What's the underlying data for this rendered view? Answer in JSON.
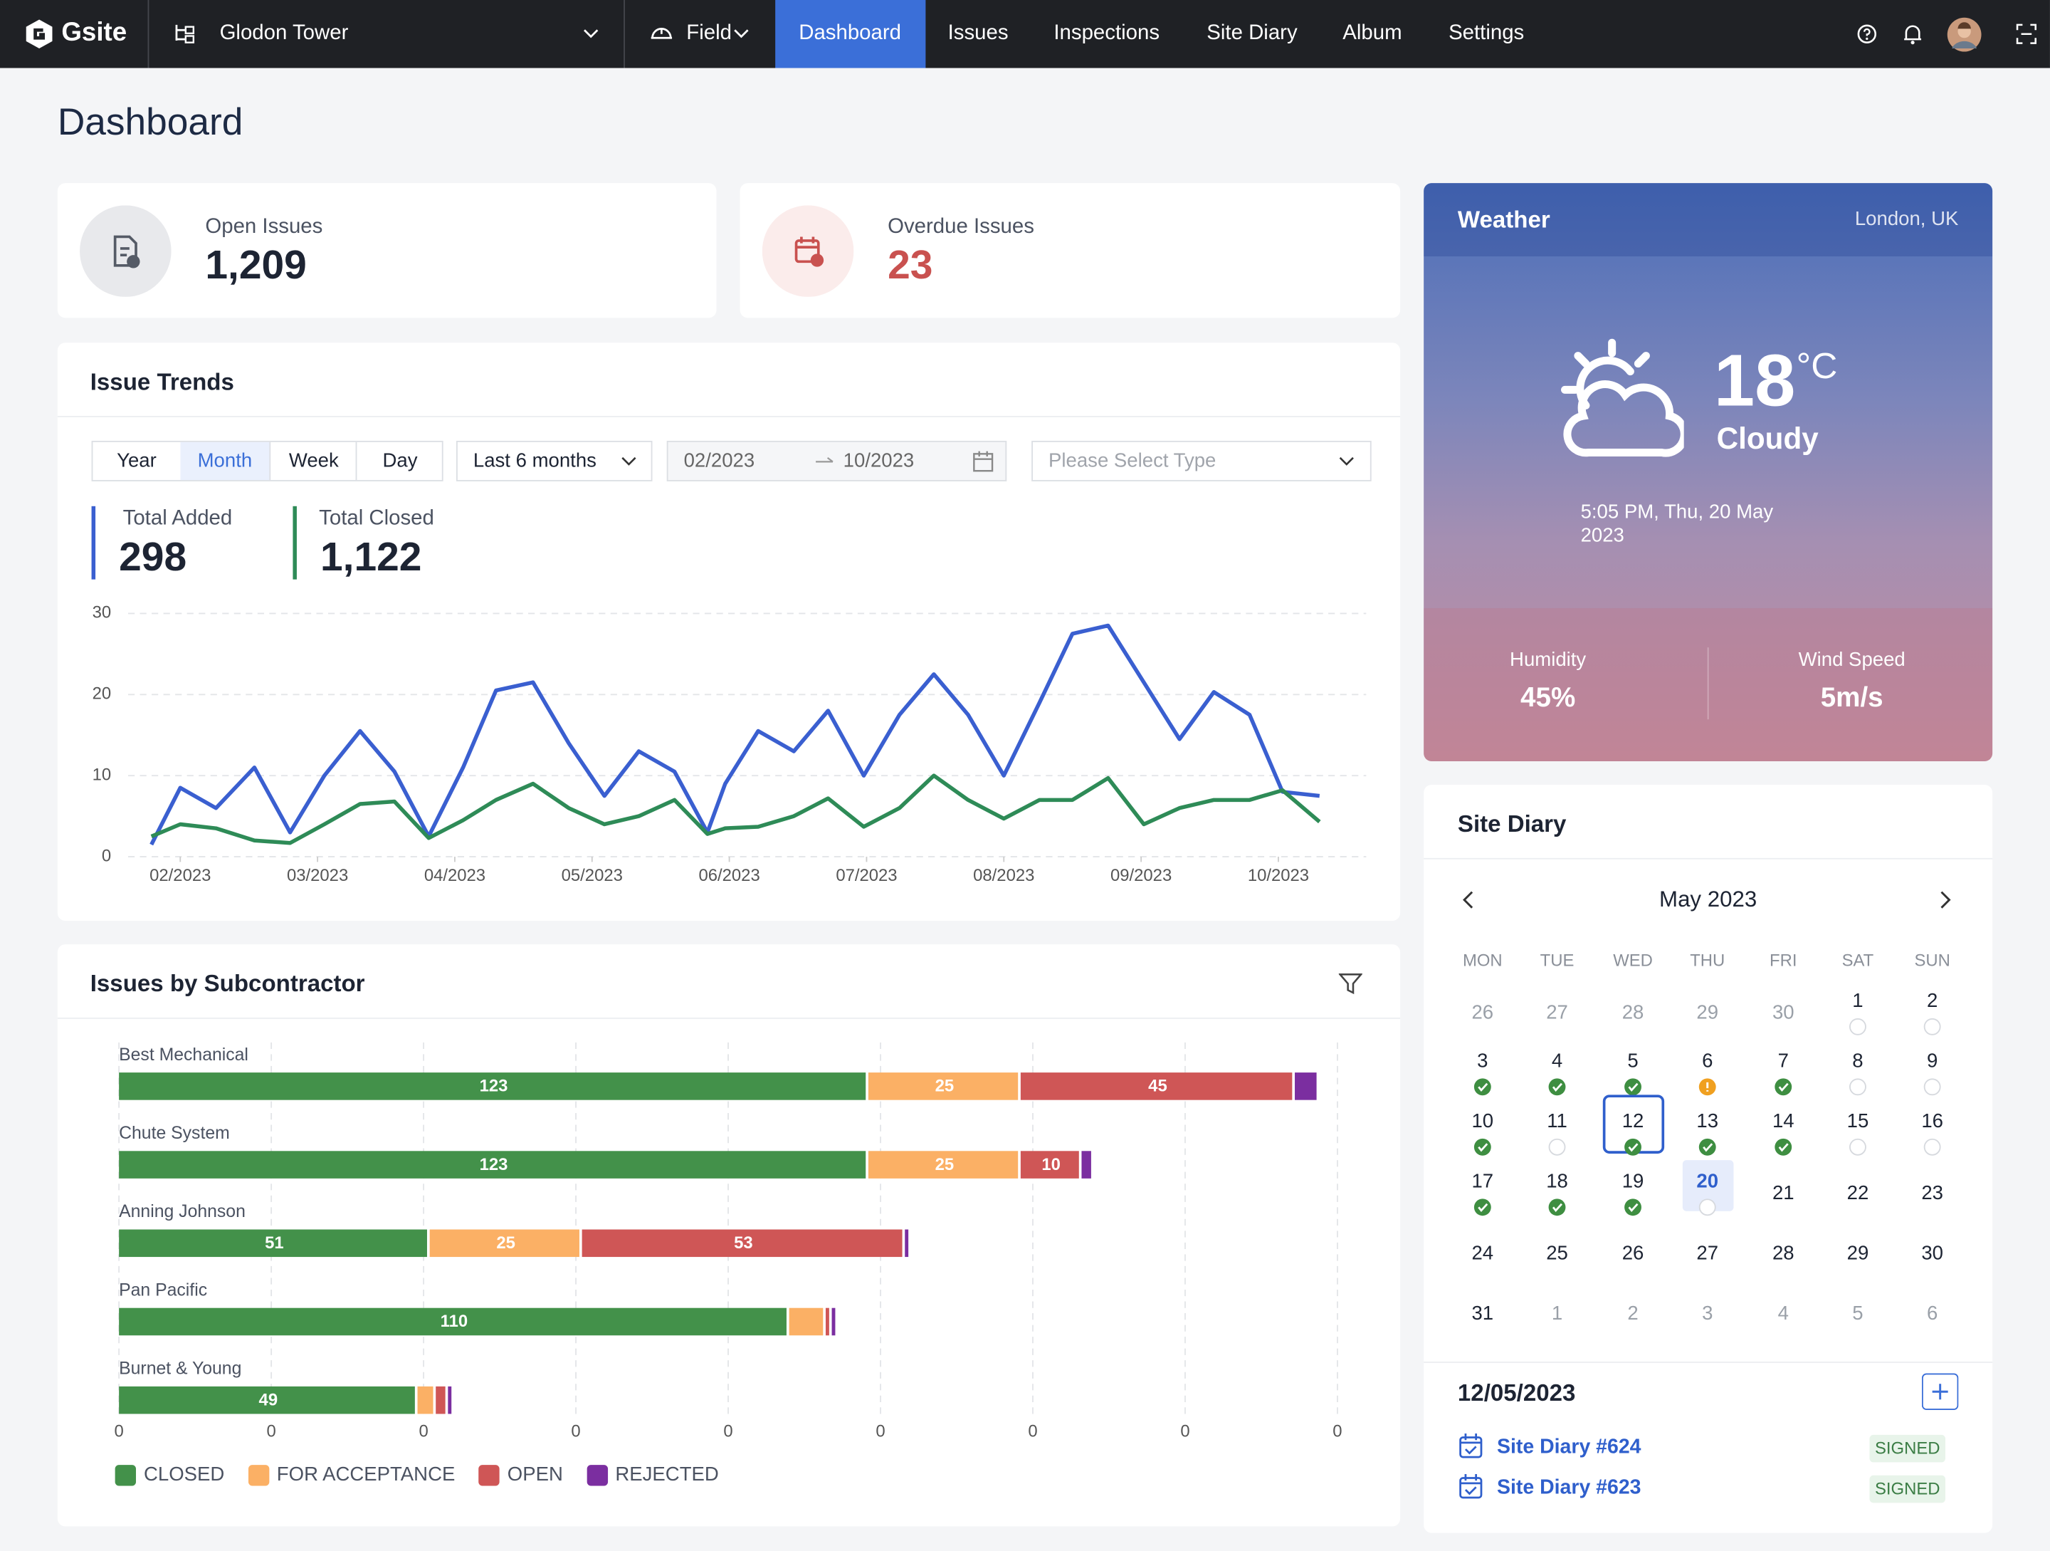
{
  "nav": {
    "brand": "Gsite",
    "project": "Glodon Tower",
    "module": "Field",
    "tabs": [
      "Dashboard",
      "Issues",
      "Inspections",
      "Site Diary",
      "Album",
      "Settings"
    ]
  },
  "header": {
    "title": "Dashboard"
  },
  "cards": [
    {
      "label": "Open Issues",
      "value": "1,209"
    },
    {
      "label": "Overdue Issues",
      "value": "23"
    }
  ],
  "issue_trends": {
    "title": "Issue Trends",
    "periods": [
      "Year",
      "Month",
      "Week",
      "Day"
    ],
    "range": "Last 6 months",
    "start": "02/2023",
    "end": "10/2023",
    "type_placeholder": "Please Select Type",
    "totals": [
      "298",
      "1,122"
    ]
  },
  "subcontractor": {
    "title": "Issues by Subcontractor"
  },
  "weather": {
    "title": "Weather",
    "location": "London, UK",
    "temperature": "18",
    "unit": "°C",
    "condition": "Cloudy",
    "datetime": "5:05 PM, Thu, 20 May 2023",
    "humidity_label": "Humidity",
    "humidity": "45%",
    "wind_label": "Wind Speed",
    "wind": "5m/s"
  },
  "site_diary": {
    "title": "Site Diary",
    "month": "May 2023",
    "weekdays": [
      "MON",
      "TUE",
      "WED",
      "THU",
      "FRI",
      "SAT",
      "SUN"
    ],
    "weeks": [
      [
        {
          "day": 26,
          "muted": true
        },
        {
          "day": 27,
          "muted": true
        },
        {
          "day": 28,
          "muted": true
        },
        {
          "day": 29,
          "muted": true
        },
        {
          "day": 30,
          "muted": true
        },
        {
          "day": 1,
          "dot": "empty"
        },
        {
          "day": 2,
          "dot": "empty"
        }
      ],
      [
        {
          "day": 3,
          "dot": "done"
        },
        {
          "day": 4,
          "dot": "done"
        },
        {
          "day": 5,
          "dot": "done"
        },
        {
          "day": 6,
          "dot": "warn"
        },
        {
          "day": 7,
          "dot": "done"
        },
        {
          "day": 8,
          "dot": "empty"
        },
        {
          "day": 9,
          "dot": "empty"
        }
      ],
      [
        {
          "day": 10,
          "dot": "done"
        },
        {
          "day": 11,
          "dot": "empty"
        },
        {
          "day": 12,
          "dot": "done",
          "selected": true
        },
        {
          "day": 13,
          "dot": "done"
        },
        {
          "day": 14,
          "dot": "done"
        },
        {
          "day": 15,
          "dot": "empty"
        },
        {
          "day": 16,
          "dot": "empty"
        }
      ],
      [
        {
          "day": 17,
          "dot": "done"
        },
        {
          "day": 18,
          "dot": "done"
        },
        {
          "day": 19,
          "dot": "done"
        },
        {
          "day": 20,
          "dot": "empty",
          "today": true
        },
        {
          "day": 21
        },
        {
          "day": 22
        },
        {
          "day": 23
        }
      ],
      [
        {
          "day": 24
        },
        {
          "day": 25
        },
        {
          "day": 26
        },
        {
          "day": 27
        },
        {
          "day": 28
        },
        {
          "day": 29
        },
        {
          "day": 30
        }
      ],
      [
        {
          "day": 31
        },
        {
          "day": 1,
          "muted": true
        },
        {
          "day": 2,
          "muted": true
        },
        {
          "day": 3,
          "muted": true
        },
        {
          "day": 4,
          "muted": true
        },
        {
          "day": 5,
          "muted": true
        },
        {
          "day": 6,
          "muted": true
        }
      ]
    ],
    "selected_date": "12/05/2023",
    "entries": [
      {
        "name": "Site Diary #624",
        "status": "SIGNED"
      },
      {
        "name": "Site Diary #623",
        "status": "SIGNED"
      }
    ]
  },
  "chart_data": [
    {
      "type": "line",
      "x": [
        1.79,
        2.0,
        2.26,
        2.54,
        2.8,
        3.05,
        3.31,
        3.56,
        3.81,
        4.06,
        4.3,
        4.57,
        4.83,
        5.09,
        5.34,
        5.6,
        5.84,
        5.97,
        6.21,
        6.47,
        6.72,
        6.98,
        7.24,
        7.49,
        7.74,
        8.0,
        8.26,
        8.5,
        8.76,
        9.02,
        9.28,
        9.53,
        9.79,
        10.03,
        10.3
      ],
      "series": [
        {
          "name": "Total Added",
          "color": "#3a5fd0",
          "values": [
            1.5,
            8.5,
            6,
            11,
            3,
            10,
            15.5,
            10.5,
            2.5,
            11,
            20.5,
            21.5,
            14,
            7.5,
            13,
            10.5,
            3,
            9,
            15.5,
            13,
            18,
            10,
            17.5,
            22.5,
            17.5,
            10,
            19,
            27.5,
            28.5,
            21.5,
            14.5,
            20.3,
            17.5,
            8,
            7.5
          ]
        },
        {
          "name": "Total Closed",
          "color": "#2e8b57",
          "values": [
            2.5,
            4,
            3.5,
            2,
            1.7,
            4,
            6.5,
            6.8,
            2.3,
            4.5,
            7,
            9,
            6,
            4,
            5,
            7,
            2.8,
            3.5,
            3.7,
            5,
            7.2,
            3.7,
            6,
            10,
            7,
            4.7,
            7,
            7,
            9.7,
            4,
            6,
            7,
            7,
            8.2,
            4.3
          ]
        }
      ],
      "xlim": [
        1.62,
        10.64
      ],
      "xticks": [
        {
          "value": 2,
          "label": "02/2023"
        },
        {
          "value": 3,
          "label": "03/2023"
        },
        {
          "value": 4,
          "label": "04/2023"
        },
        {
          "value": 5,
          "label": "05/2023"
        },
        {
          "value": 6,
          "label": "06/2023"
        },
        {
          "value": 7,
          "label": "07/2023"
        },
        {
          "value": 8,
          "label": "08/2023"
        },
        {
          "value": 9,
          "label": "09/2023"
        },
        {
          "value": 10,
          "label": "10/2023"
        }
      ],
      "ylim": [
        0,
        30
      ],
      "yticks": [
        0,
        10,
        20,
        30
      ],
      "grid": true
    },
    {
      "type": "bar",
      "orientation": "horizontal",
      "stacked": true,
      "categories": [
        "Best Mechanical",
        "Chute System",
        "Anning Johnson",
        "Pan Pacific",
        "Burnet & Young"
      ],
      "series": [
        {
          "name": "CLOSED",
          "color": "#43914a",
          "values": [
            123,
            123,
            51,
            110,
            49
          ]
        },
        {
          "name": "FOR ACCEPTANCE",
          "color": "#fbb065",
          "values": [
            25,
            25,
            25,
            6,
            3
          ]
        },
        {
          "name": "OPEN",
          "color": "#cf5656",
          "values": [
            45,
            10,
            53,
            1,
            2
          ]
        },
        {
          "name": "REJECTED",
          "color": "#7b2ea0",
          "values": [
            4,
            2,
            1,
            1,
            1
          ]
        }
      ],
      "xlim": [
        0,
        200
      ],
      "xticks": [
        0,
        {
          "value": 25,
          "label": "0"
        },
        {
          "value": 50,
          "label": "0"
        },
        {
          "value": 75,
          "label": "0"
        },
        {
          "value": 100,
          "label": "0"
        },
        {
          "value": 125,
          "label": "0"
        },
        {
          "value": 150,
          "label": "0"
        },
        {
          "value": 175,
          "label": "0"
        },
        {
          "value": 200,
          "label": "0"
        }
      ],
      "grid": true
    }
  ]
}
